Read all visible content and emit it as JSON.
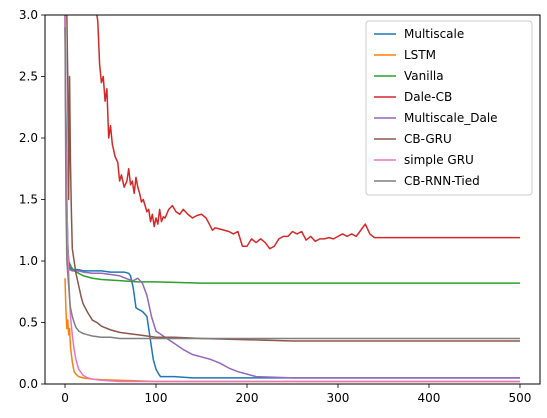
{
  "chart_data": {
    "type": "line",
    "title": "",
    "xlabel": "",
    "ylabel": "",
    "xlim": [
      -22,
      522
    ],
    "ylim": [
      0,
      3.0
    ],
    "xticks": [
      0,
      100,
      200,
      300,
      400,
      500
    ],
    "xtick_labels": [
      "0",
      "100",
      "200",
      "300",
      "400",
      "500"
    ],
    "yticks": [
      0.0,
      0.5,
      1.0,
      1.5,
      2.0,
      2.5,
      3.0
    ],
    "ytick_labels": [
      "0.0",
      "0.5",
      "1.0",
      "1.5",
      "2.0",
      "2.5",
      "3.0"
    ],
    "grid": false,
    "legend_position": "top-right",
    "series": [
      {
        "name": "Multiscale",
        "color": "#1f77b4",
        "x": [
          0,
          1,
          2,
          3,
          4,
          5,
          6,
          8,
          10,
          15,
          20,
          30,
          40,
          50,
          60,
          65,
          70,
          72,
          75,
          78,
          80,
          85,
          90,
          92,
          95,
          97,
          100,
          103,
          105,
          110,
          120,
          140,
          160,
          180,
          200,
          250,
          300,
          400,
          500
        ],
        "y": [
          3.0,
          2.2,
          1.5,
          1.15,
          1.0,
          0.95,
          0.94,
          0.93,
          0.93,
          0.93,
          0.92,
          0.92,
          0.92,
          0.91,
          0.91,
          0.91,
          0.9,
          0.88,
          0.78,
          0.62,
          0.61,
          0.59,
          0.55,
          0.45,
          0.3,
          0.2,
          0.12,
          0.08,
          0.06,
          0.06,
          0.06,
          0.05,
          0.05,
          0.05,
          0.05,
          0.05,
          0.05,
          0.05,
          0.05
        ]
      },
      {
        "name": "LSTM",
        "color": "#ff7f0e",
        "x": [
          0,
          1,
          2,
          3,
          4,
          5,
          6,
          8,
          10,
          12,
          15,
          20,
          25,
          30,
          40,
          60,
          80,
          100,
          150,
          200,
          300,
          400,
          500
        ],
        "y": [
          0.86,
          0.6,
          0.45,
          0.52,
          0.4,
          0.45,
          0.3,
          0.18,
          0.1,
          0.08,
          0.06,
          0.05,
          0.045,
          0.04,
          0.035,
          0.03,
          0.025,
          0.02,
          0.02,
          0.02,
          0.02,
          0.02,
          0.02
        ]
      },
      {
        "name": "Vanilla",
        "color": "#2ca02c",
        "x": [
          0,
          1,
          2,
          3,
          4,
          5,
          7,
          10,
          15,
          20,
          30,
          40,
          60,
          80,
          100,
          150,
          200,
          300,
          400,
          500
        ],
        "y": [
          3.0,
          2.0,
          1.3,
          1.1,
          1.0,
          0.98,
          0.95,
          0.92,
          0.9,
          0.88,
          0.86,
          0.85,
          0.84,
          0.83,
          0.83,
          0.82,
          0.82,
          0.82,
          0.82,
          0.82
        ]
      },
      {
        "name": "Dale-CB",
        "color": "#d62728",
        "x": [
          35,
          36,
          38,
          40,
          42,
          44,
          46,
          48,
          50,
          52,
          55,
          58,
          60,
          62,
          65,
          68,
          70,
          72,
          74,
          76,
          78,
          80,
          82,
          84,
          86,
          88,
          90,
          92,
          94,
          96,
          98,
          100,
          102,
          104,
          106,
          108,
          110,
          114,
          118,
          122,
          126,
          130,
          135,
          140,
          145,
          150,
          155,
          160,
          162,
          165,
          170,
          175,
          180,
          185,
          190,
          195,
          200,
          205,
          210,
          215,
          220,
          225,
          230,
          235,
          240,
          245,
          250,
          255,
          260,
          265,
          270,
          275,
          280,
          285,
          290,
          295,
          300,
          305,
          310,
          315,
          320,
          325,
          330,
          335,
          340,
          400,
          450,
          500
        ],
        "y": [
          3.0,
          2.95,
          2.6,
          2.45,
          2.5,
          2.3,
          2.4,
          2.0,
          2.1,
          1.95,
          1.85,
          1.8,
          1.65,
          1.7,
          1.6,
          1.65,
          1.75,
          1.62,
          1.65,
          1.55,
          1.68,
          1.6,
          1.55,
          1.48,
          1.5,
          1.45,
          1.4,
          1.42,
          1.32,
          1.38,
          1.28,
          1.35,
          1.3,
          1.42,
          1.32,
          1.36,
          1.35,
          1.42,
          1.45,
          1.4,
          1.38,
          1.42,
          1.38,
          1.35,
          1.37,
          1.38,
          1.35,
          1.28,
          1.25,
          1.27,
          1.26,
          1.25,
          1.24,
          1.22,
          1.24,
          1.12,
          1.12,
          1.18,
          1.15,
          1.18,
          1.15,
          1.1,
          1.12,
          1.18,
          1.2,
          1.2,
          1.24,
          1.22,
          1.24,
          1.17,
          1.2,
          1.16,
          1.18,
          1.18,
          1.19,
          1.18,
          1.2,
          1.22,
          1.2,
          1.22,
          1.2,
          1.25,
          1.3,
          1.22,
          1.19,
          1.19,
          1.19,
          1.19
        ]
      },
      {
        "name": "Multiscale_Dale",
        "color": "#9467bd",
        "x": [
          0,
          1,
          2,
          3,
          4,
          5,
          8,
          10,
          15,
          20,
          30,
          40,
          50,
          60,
          70,
          75,
          80,
          85,
          90,
          95,
          100,
          110,
          120,
          130,
          140,
          150,
          160,
          170,
          180,
          190,
          200,
          210,
          250,
          300,
          400,
          500
        ],
        "y": [
          3.0,
          2.0,
          1.3,
          1.0,
          0.95,
          0.93,
          0.92,
          0.92,
          0.92,
          0.91,
          0.9,
          0.9,
          0.89,
          0.88,
          0.85,
          0.84,
          0.86,
          0.82,
          0.72,
          0.55,
          0.43,
          0.38,
          0.33,
          0.28,
          0.24,
          0.22,
          0.2,
          0.17,
          0.13,
          0.1,
          0.08,
          0.06,
          0.05,
          0.05,
          0.05,
          0.05
        ]
      },
      {
        "name": "CB-GRU",
        "color": "#8c564b",
        "x": [
          0,
          1,
          2,
          3,
          4,
          5,
          6,
          7,
          8,
          10,
          12,
          15,
          18,
          20,
          25,
          30,
          35,
          40,
          50,
          60,
          70,
          80,
          90,
          100,
          120,
          150,
          200,
          250,
          300,
          400,
          500
        ],
        "y": [
          3.0,
          3.0,
          3.0,
          2.5,
          1.5,
          2.5,
          1.8,
          1.4,
          1.1,
          1.0,
          0.9,
          0.8,
          0.7,
          0.65,
          0.58,
          0.52,
          0.5,
          0.47,
          0.44,
          0.42,
          0.41,
          0.4,
          0.39,
          0.38,
          0.38,
          0.37,
          0.36,
          0.35,
          0.35,
          0.35,
          0.35
        ]
      },
      {
        "name": "simple GRU",
        "color": "#e377c2",
        "x": [
          0,
          1,
          2,
          3,
          4,
          5,
          6,
          8,
          10,
          12,
          15,
          20,
          25,
          30,
          40,
          60,
          100,
          150,
          200,
          300,
          400,
          500
        ],
        "y": [
          3.0,
          2.0,
          1.5,
          1.1,
          0.9,
          0.7,
          0.55,
          0.4,
          0.28,
          0.2,
          0.12,
          0.07,
          0.05,
          0.04,
          0.03,
          0.02,
          0.02,
          0.02,
          0.02,
          0.02,
          0.02,
          0.02
        ]
      },
      {
        "name": "CB-RNN-Tied",
        "color": "#7f7f7f",
        "x": [
          0,
          1,
          2,
          3,
          4,
          5,
          6,
          8,
          10,
          12,
          15,
          20,
          25,
          30,
          40,
          50,
          60,
          80,
          100,
          150,
          200,
          300,
          400,
          500
        ],
        "y": [
          2.9,
          1.5,
          1.0,
          0.9,
          0.8,
          0.7,
          0.62,
          0.55,
          0.5,
          0.46,
          0.43,
          0.41,
          0.4,
          0.39,
          0.38,
          0.38,
          0.37,
          0.37,
          0.37,
          0.37,
          0.37,
          0.37,
          0.37,
          0.37
        ]
      }
    ]
  }
}
